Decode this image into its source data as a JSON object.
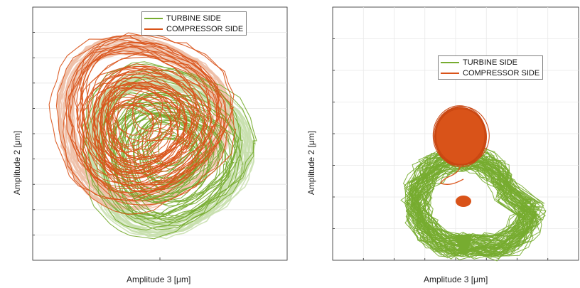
{
  "chart_data": [
    {
      "type": "line",
      "subtype": "orbit",
      "title": "",
      "xlabel": "Amplitude 3 [μm]",
      "ylabel": "Amplitude 2 [μm]",
      "grid": "horizontal",
      "legend_position": "top",
      "series": [
        {
          "name": "TURBINE SIDE",
          "color": "#77AC30",
          "light_color": "#c8dfae",
          "center": [
            0.05,
            -0.15
          ],
          "radius": 0.62,
          "shape": "rounded-triangle"
        },
        {
          "name": "COMPRESSOR SIDE",
          "color": "#D95319",
          "light_color": "#efbfa8",
          "center": [
            -0.15,
            0.1
          ],
          "radius": 0.64,
          "shape": "rounded-triangle"
        }
      ]
    },
    {
      "type": "line",
      "subtype": "orbit",
      "title": "",
      "xlabel": "Amplitude 3 [μm]",
      "ylabel": "Amplitude 2 [μm]",
      "grid": "both",
      "legend_position": "top-center",
      "series": [
        {
          "name": "TURBINE SIDE",
          "color": "#77AC30",
          "shape": "skewed-wedge"
        },
        {
          "name": "COMPRESSOR SIDE",
          "color": "#D95319",
          "shape": "filled-circle-with-tail"
        }
      ]
    }
  ]
}
